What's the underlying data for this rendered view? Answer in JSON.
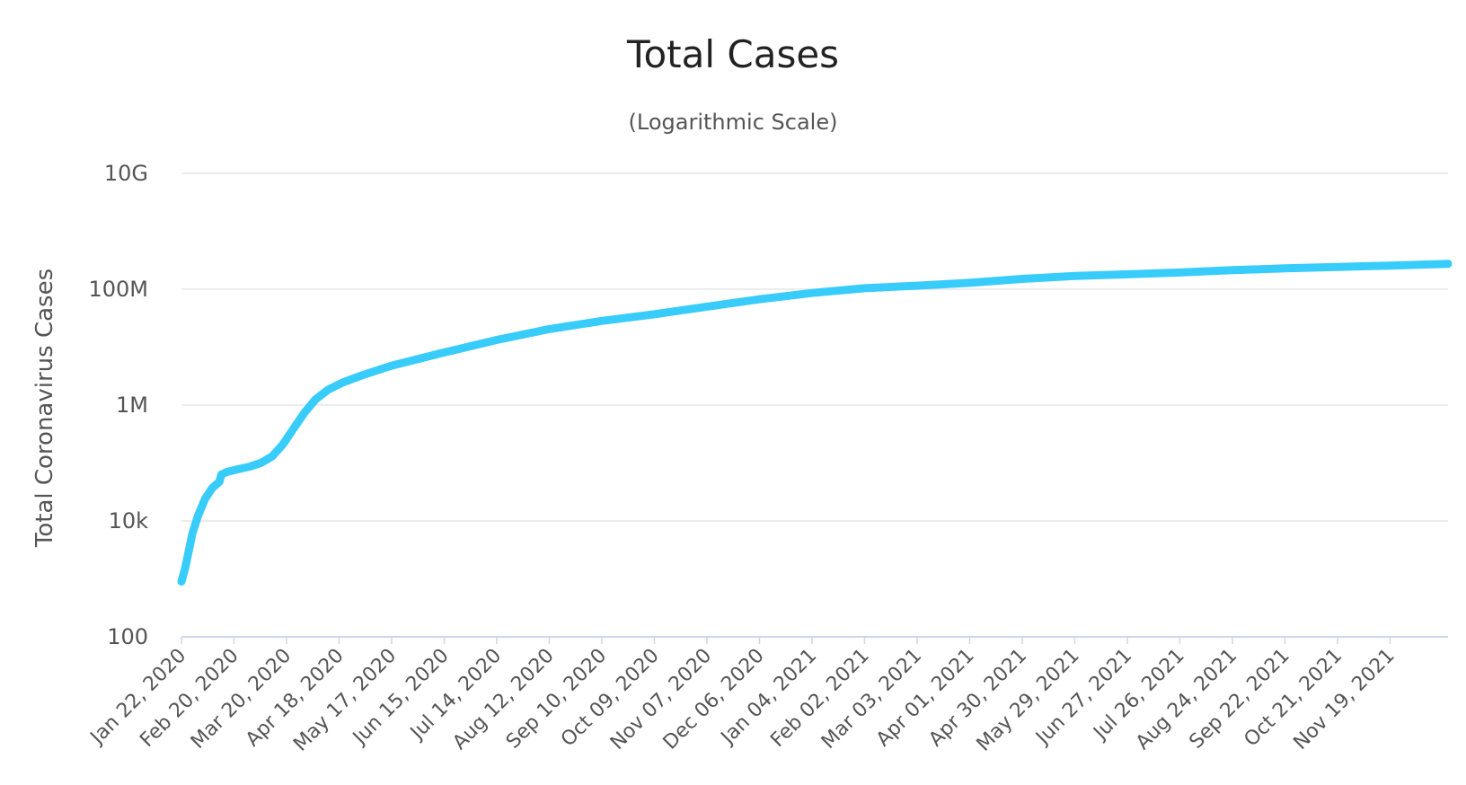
{
  "chart_data": {
    "type": "line",
    "title": "Total Cases",
    "subtitle": "(Logarithmic Scale)",
    "ylabel": "Total Coronavirus Cases",
    "xlabel": "",
    "yscale": "log",
    "ylim": [
      100,
      10000000000
    ],
    "yticks": [
      {
        "value": 100,
        "label": "100"
      },
      {
        "value": 10000,
        "label": "10k"
      },
      {
        "value": 1000000,
        "label": "1M"
      },
      {
        "value": 100000000,
        "label": "100M"
      },
      {
        "value": 10000000000,
        "label": "10G"
      }
    ],
    "xlim": [
      "2020-01-22",
      "2021-12-21"
    ],
    "xticks": [
      {
        "date": "2020-01-22",
        "label": "Jan 22, 2020"
      },
      {
        "date": "2020-02-20",
        "label": "Feb 20, 2020"
      },
      {
        "date": "2020-03-20",
        "label": "Mar 20, 2020"
      },
      {
        "date": "2020-04-18",
        "label": "Apr 18, 2020"
      },
      {
        "date": "2020-05-17",
        "label": "May 17, 2020"
      },
      {
        "date": "2020-06-15",
        "label": "Jun 15, 2020"
      },
      {
        "date": "2020-07-14",
        "label": "Jul 14, 2020"
      },
      {
        "date": "2020-08-12",
        "label": "Aug 12, 2020"
      },
      {
        "date": "2020-09-10",
        "label": "Sep 10, 2020"
      },
      {
        "date": "2020-10-09",
        "label": "Oct 09, 2020"
      },
      {
        "date": "2020-11-07",
        "label": "Nov 07, 2020"
      },
      {
        "date": "2020-12-06",
        "label": "Dec 06, 2020"
      },
      {
        "date": "2021-01-04",
        "label": "Jan 04, 2021"
      },
      {
        "date": "2021-02-02",
        "label": "Feb 02, 2021"
      },
      {
        "date": "2021-03-03",
        "label": "Mar 03, 2021"
      },
      {
        "date": "2021-04-01",
        "label": "Apr 01, 2021"
      },
      {
        "date": "2021-04-30",
        "label": "Apr 30, 2021"
      },
      {
        "date": "2021-05-29",
        "label": "May 29, 2021"
      },
      {
        "date": "2021-06-27",
        "label": "Jun 27, 2021"
      },
      {
        "date": "2021-07-26",
        "label": "Jul 26, 2021"
      },
      {
        "date": "2021-08-24",
        "label": "Aug 24, 2021"
      },
      {
        "date": "2021-09-22",
        "label": "Sep 22, 2021"
      },
      {
        "date": "2021-10-21",
        "label": "Oct 21, 2021"
      },
      {
        "date": "2021-11-19",
        "label": "Nov 19, 2021"
      }
    ],
    "grid": true,
    "series": [
      {
        "color": "#38ccfa",
        "points": [
          {
            "x": "2020-01-22",
            "y": 900
          },
          {
            "x": "2020-01-24",
            "y": 1500
          },
          {
            "x": "2020-01-26",
            "y": 3000
          },
          {
            "x": "2020-01-28",
            "y": 6000
          },
          {
            "x": "2020-01-31",
            "y": 12000
          },
          {
            "x": "2020-02-04",
            "y": 24000
          },
          {
            "x": "2020-02-08",
            "y": 37000
          },
          {
            "x": "2020-02-12",
            "y": 48000
          },
          {
            "x": "2020-02-13",
            "y": 63000
          },
          {
            "x": "2020-02-16",
            "y": 70000
          },
          {
            "x": "2020-02-22",
            "y": 78000
          },
          {
            "x": "2020-02-29",
            "y": 87000
          },
          {
            "x": "2020-03-06",
            "y": 101000
          },
          {
            "x": "2020-03-12",
            "y": 130000
          },
          {
            "x": "2020-03-18",
            "y": 210000
          },
          {
            "x": "2020-03-24",
            "y": 400000
          },
          {
            "x": "2020-03-30",
            "y": 750000
          },
          {
            "x": "2020-04-05",
            "y": 1250000
          },
          {
            "x": "2020-04-12",
            "y": 1850000
          },
          {
            "x": "2020-04-20",
            "y": 2450000
          },
          {
            "x": "2020-05-01",
            "y": 3300000
          },
          {
            "x": "2020-05-17",
            "y": 4800000
          },
          {
            "x": "2020-06-15",
            "y": 8100000
          },
          {
            "x": "2020-07-14",
            "y": 13300000
          },
          {
            "x": "2020-08-12",
            "y": 20500000
          },
          {
            "x": "2020-09-10",
            "y": 28400000
          },
          {
            "x": "2020-10-09",
            "y": 36900000
          },
          {
            "x": "2020-11-07",
            "y": 50000000
          },
          {
            "x": "2020-12-06",
            "y": 67000000
          },
          {
            "x": "2021-01-04",
            "y": 86000000
          },
          {
            "x": "2021-02-02",
            "y": 104000000
          },
          {
            "x": "2021-03-03",
            "y": 115000000
          },
          {
            "x": "2021-04-01",
            "y": 129000000
          },
          {
            "x": "2021-04-30",
            "y": 151000000
          },
          {
            "x": "2021-05-29",
            "y": 169000000
          },
          {
            "x": "2021-06-27",
            "y": 181000000
          },
          {
            "x": "2021-07-26",
            "y": 194000000
          },
          {
            "x": "2021-08-24",
            "y": 213000000
          },
          {
            "x": "2021-09-22",
            "y": 229000000
          },
          {
            "x": "2021-10-21",
            "y": 242000000
          },
          {
            "x": "2021-11-19",
            "y": 256000000
          },
          {
            "x": "2021-12-21",
            "y": 275000000
          }
        ]
      }
    ]
  }
}
